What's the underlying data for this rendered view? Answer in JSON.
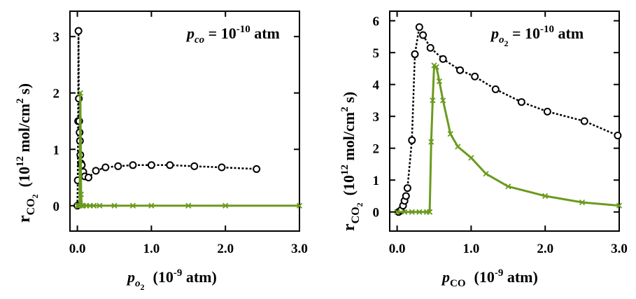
{
  "chart_data": [
    {
      "type": "line",
      "panel": "left",
      "annotation": {
        "symbol": "p",
        "subscript": "co",
        "text": " = 10",
        "sup": "-10",
        "unit": " atm"
      },
      "xlabel": {
        "symbol": "p",
        "sub": "o",
        "subsub": "2",
        "text": "(10",
        "sup": "-9",
        "unit": " atm)"
      },
      "ylabel": {
        "main": "r",
        "sub": "CO",
        "subsub": "2",
        "text": "(10",
        "sup": "12",
        "unit": " mol/cm",
        "sup2": "2",
        "end": " s)"
      },
      "xlim": [
        -0.1,
        3.0
      ],
      "ylim": [
        -0.45,
        3.45
      ],
      "xticks": [
        0.0,
        1.0,
        2.0,
        3.0
      ],
      "xtick_labels": [
        "0.0",
        "1.0",
        "2.0",
        "3.0"
      ],
      "yticks": [
        0,
        1,
        2,
        3
      ],
      "ytick_labels": [
        "0",
        "1",
        "2",
        "3"
      ],
      "series": [
        {
          "name": "circles",
          "color": "#000000",
          "marker": "circle",
          "dashed": true,
          "x": [
            0.0,
            0.005,
            0.01,
            0.015,
            0.02,
            0.025,
            0.03,
            0.035,
            0.04,
            0.05,
            0.06,
            0.08,
            0.1,
            0.15,
            0.25,
            0.38,
            0.55,
            0.75,
            1.0,
            1.25,
            1.58,
            1.95,
            2.42
          ],
          "y": [
            0.0,
            0.45,
            1.5,
            3.1,
            1.9,
            1.5,
            1.3,
            1.15,
            0.9,
            0.75,
            0.72,
            0.6,
            0.52,
            0.5,
            0.62,
            0.68,
            0.7,
            0.72,
            0.72,
            0.72,
            0.7,
            0.68,
            0.65
          ]
        },
        {
          "name": "crosses",
          "color": "#6b9a1e",
          "marker": "x",
          "dashed": false,
          "x": [
            0.0,
            0.01,
            0.02,
            0.03,
            0.04,
            0.05,
            0.06,
            0.08,
            0.12,
            0.17,
            0.22,
            0.3,
            0.5,
            0.75,
            1.0,
            1.5,
            2.0,
            3.0
          ],
          "y": [
            0.0,
            0.0,
            0.0,
            0.0,
            2.0,
            0.2,
            0.0,
            0.0,
            0.0,
            0.0,
            0.0,
            0.0,
            0.0,
            0.0,
            0.0,
            0.0,
            0.0,
            0.0
          ]
        }
      ]
    },
    {
      "type": "line",
      "panel": "right",
      "annotation": {
        "symbol": "p",
        "subscript": "o",
        "subsub": "2",
        "text": " = 10",
        "sup": "-10",
        "unit": " atm"
      },
      "xlabel": {
        "symbol": "p",
        "sub": "CO",
        "text": "(10",
        "sup": "-9",
        "unit": " atm)"
      },
      "ylabel": {
        "main": "r",
        "sub": "CO",
        "subsub": "2",
        "text": "(10",
        "sup": "12",
        "unit": " mol/cm",
        "sup2": "2",
        "end": " s)"
      },
      "xlim": [
        -0.1,
        3.0
      ],
      "ylim": [
        -0.6,
        6.3
      ],
      "xticks": [
        0.0,
        1.0,
        2.0,
        3.0
      ],
      "xtick_labels": [
        "0.0",
        "1.0",
        "2.0",
        "3.0"
      ],
      "yticks": [
        0,
        1,
        2,
        3,
        4,
        5,
        6
      ],
      "ytick_labels": [
        "0",
        "1",
        "2",
        "3",
        "4",
        "5",
        "6"
      ],
      "series": [
        {
          "name": "circles",
          "color": "#000000",
          "marker": "circle",
          "dashed": true,
          "x": [
            0.02,
            0.05,
            0.08,
            0.1,
            0.12,
            0.14,
            0.2,
            0.24,
            0.3,
            0.35,
            0.45,
            0.62,
            0.85,
            1.05,
            1.33,
            1.68,
            2.03,
            2.53,
            2.98
          ],
          "y": [
            0.0,
            0.05,
            0.2,
            0.35,
            0.5,
            0.75,
            2.25,
            4.95,
            5.8,
            5.55,
            5.15,
            4.8,
            4.45,
            4.25,
            3.85,
            3.45,
            3.15,
            2.85,
            2.4
          ]
        },
        {
          "name": "crosses",
          "color": "#6b9a1e",
          "marker": "x",
          "dashed": false,
          "x": [
            0.0,
            0.1,
            0.2,
            0.3,
            0.4,
            0.44,
            0.46,
            0.48,
            0.5,
            0.53,
            0.57,
            0.62,
            0.72,
            0.82,
            1.0,
            1.2,
            1.5,
            2.0,
            2.5,
            3.0
          ],
          "y": [
            0.0,
            0.0,
            0.0,
            0.0,
            0.0,
            0.0,
            2.2,
            3.5,
            4.6,
            4.55,
            4.1,
            3.5,
            2.45,
            2.05,
            1.7,
            1.2,
            0.8,
            0.5,
            0.3,
            0.2
          ]
        }
      ]
    }
  ]
}
